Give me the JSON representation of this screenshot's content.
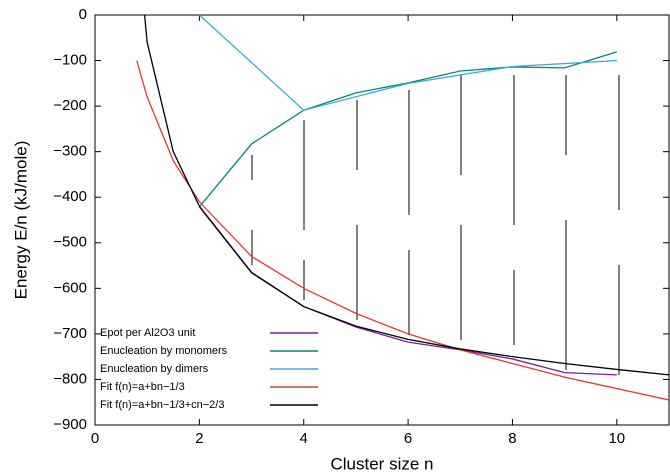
{
  "chart_data": {
    "type": "line",
    "xlabel": "Cluster size n",
    "ylabel": "Energy E/n (kJ/mole)",
    "xlim": [
      0,
      11
    ],
    "ylim": [
      -900,
      0
    ],
    "xticks": [
      0,
      2,
      4,
      6,
      8,
      10
    ],
    "yticks": [
      {
        "value": -900,
        "label": "−900"
      },
      {
        "value": -800,
        "label": "−800"
      },
      {
        "value": -700,
        "label": "−700"
      },
      {
        "value": -600,
        "label": "−600"
      },
      {
        "value": -500,
        "label": "−500"
      },
      {
        "value": -400,
        "label": "−400"
      },
      {
        "value": -300,
        "label": "−300"
      },
      {
        "value": -200,
        "label": "−200"
      },
      {
        "value": -100,
        "label": "−100"
      },
      0
    ],
    "legend": "lower left",
    "series": [
      {
        "name": "Epot per Al2O3 unit",
        "color": "#7b1fa2",
        "x": [
          2,
          3,
          4,
          5,
          6,
          7,
          8,
          9,
          10
        ],
        "values": [
          -421,
          -566,
          -640,
          -685,
          -718,
          -735,
          -755,
          -785,
          -790
        ]
      },
      {
        "name": "Enucleation by monomers",
        "color": "#00897b",
        "x": [
          2,
          3,
          4,
          5,
          6,
          7,
          8,
          9,
          10
        ],
        "values": [
          -421,
          -283,
          -209,
          -171,
          -149,
          -123,
          -114,
          -116,
          -81
        ]
      },
      {
        "name": "Enucleation by dimers",
        "color": "#3fa9dc",
        "x": [
          2,
          4,
          6,
          8,
          10
        ],
        "values": [
          0,
          -209,
          -150,
          -113,
          -100
        ]
      },
      {
        "name": "Fit f(n)=a+bn−1/3",
        "color": "#e53935",
        "x": [
          0.8,
          1,
          1.5,
          2,
          3,
          4,
          5,
          6,
          7,
          8,
          9,
          10,
          11
        ],
        "values": [
          -100,
          -180,
          -320,
          -410,
          -530,
          -600,
          -655,
          -700,
          -735,
          -765,
          -795,
          -820,
          -845
        ]
      },
      {
        "name": "Fit f(n)=a+bn−1/3+cn−2/3",
        "color": "#000000",
        "x": [
          0.95,
          1,
          1.5,
          2,
          3,
          4,
          5,
          6,
          7,
          8,
          9,
          10,
          11
        ],
        "values": [
          0,
          -60,
          -300,
          -420,
          -565,
          -640,
          -683,
          -712,
          -733,
          -750,
          -765,
          -778,
          -790
        ]
      }
    ]
  }
}
